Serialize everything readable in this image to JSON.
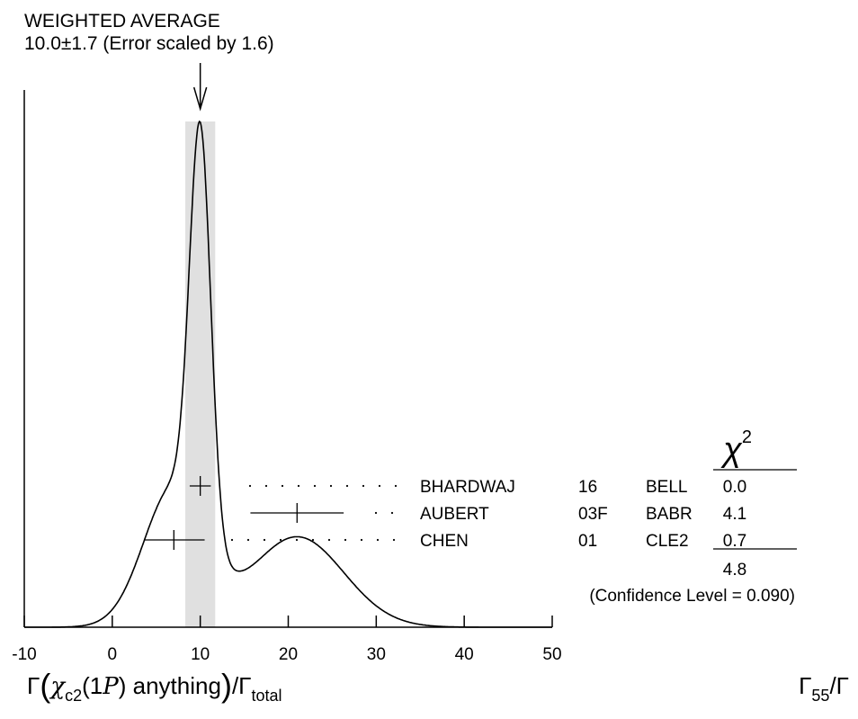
{
  "header": {
    "title": "WEIGHTED AVERAGE",
    "value_line": "10.0±1.7 (Error scaled by 1.6)"
  },
  "chart_data": {
    "type": "ideogram",
    "xlim": [
      -10,
      50
    ],
    "x_ticks": [
      -10,
      0,
      10,
      20,
      30,
      40,
      50
    ],
    "weighted_average": {
      "value": 10.0,
      "error": 1.7,
      "scale_factor": 1.6,
      "band": [
        8.3,
        11.7
      ]
    },
    "measurements": [
      {
        "author": "BHARDWAJ",
        "year": "16",
        "experiment": "BELL",
        "value": 10.0,
        "error_low": 1.2,
        "error_high": 1.2,
        "chi2": "0.0"
      },
      {
        "author": "AUBERT",
        "year": "03F",
        "experiment": "BABR",
        "value": 21.0,
        "error_low": 5.3,
        "error_high": 5.3,
        "chi2": "4.1"
      },
      {
        "author": "CHEN",
        "year": "01",
        "experiment": "CLE2",
        "value": 7.0,
        "error_low": 3.4,
        "error_high": 3.5,
        "chi2": "0.7"
      }
    ],
    "chi2_header": "χ",
    "chi2_header_exp": "2",
    "chi2_total": "4.8",
    "confidence_level": "(Confidence Level = 0.090)"
  },
  "footer": {
    "gamma_left": "Γ",
    "paren_open": "(",
    "chi": "χ",
    "chi_sub": "c2",
    "state_open": "(1",
    "state_p": "P",
    "state_close": ")",
    "anything": "anything",
    "paren_close": ")",
    "slash_gamma": "/Γ",
    "total_sub": "total",
    "ratio_gamma": "Γ",
    "ratio_sub": "55",
    "ratio_den": "/Γ"
  }
}
